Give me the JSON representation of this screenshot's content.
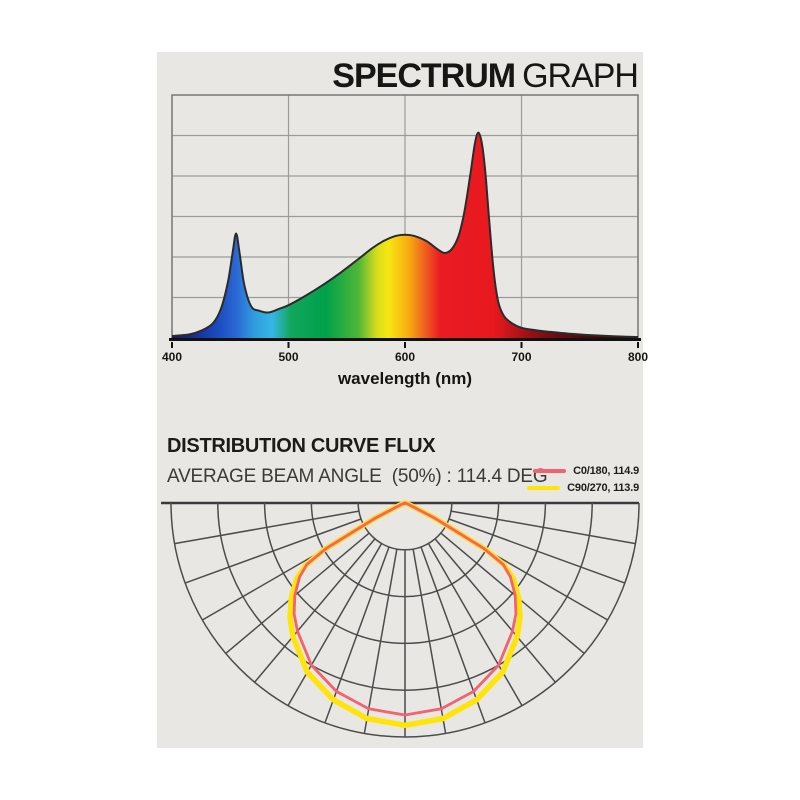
{
  "header": {
    "title_bold": "SPECTRUM",
    "title_light": "GRAPH"
  },
  "distribution": {
    "heading": "DISTRIBUTION CURVE FLUX",
    "subheading": "AVERAGE BEAM ANGLE  (50%) : 114.4 DEG",
    "legend": [
      {
        "label": "C0/180, 114.9",
        "color": "#f4616f"
      },
      {
        "label": "C90/270, 113.9",
        "color": "#ffe40a"
      }
    ]
  },
  "colors": {
    "panel_bg": "#e8e7e4",
    "spectrum_grid": "#9b9b9b",
    "spectrum_border": "#7d7d7d",
    "spectrum_outline": "#2b2b2b",
    "axis": "#111111",
    "polar_grid": "#4c4c4c",
    "polar_top_line": "#3a3a3a",
    "tick_text": "#151513"
  },
  "chart_data": [
    {
      "type": "area",
      "title": "SPECTRUM GRAPH",
      "xlabel": "wavelength (nm)",
      "xlim": [
        400,
        800
      ],
      "ylim": [
        0,
        1
      ],
      "x_ticks": [
        400,
        500,
        600,
        700,
        800
      ],
      "grid": {
        "rows": 6,
        "cols": 4
      },
      "legend_position": "none",
      "points": [
        [
          400,
          0.008
        ],
        [
          415,
          0.015
        ],
        [
          425,
          0.03
        ],
        [
          435,
          0.06
        ],
        [
          442,
          0.12
        ],
        [
          448,
          0.23
        ],
        [
          452,
          0.35
        ],
        [
          455,
          0.43
        ],
        [
          458,
          0.35
        ],
        [
          462,
          0.22
        ],
        [
          468,
          0.13
        ],
        [
          475,
          0.112
        ],
        [
          483,
          0.105
        ],
        [
          492,
          0.12
        ],
        [
          500,
          0.135
        ],
        [
          515,
          0.175
        ],
        [
          530,
          0.22
        ],
        [
          545,
          0.27
        ],
        [
          560,
          0.325
        ],
        [
          572,
          0.37
        ],
        [
          582,
          0.4
        ],
        [
          592,
          0.42
        ],
        [
          600,
          0.425
        ],
        [
          608,
          0.42
        ],
        [
          618,
          0.4
        ],
        [
          628,
          0.365
        ],
        [
          634,
          0.35
        ],
        [
          640,
          0.365
        ],
        [
          646,
          0.42
        ],
        [
          651,
          0.52
        ],
        [
          656,
          0.67
        ],
        [
          660,
          0.8
        ],
        [
          663,
          0.845
        ],
        [
          666,
          0.8
        ],
        [
          669,
          0.68
        ],
        [
          672,
          0.5
        ],
        [
          676,
          0.28
        ],
        [
          680,
          0.15
        ],
        [
          685,
          0.09
        ],
        [
          692,
          0.06
        ],
        [
          700,
          0.042
        ],
        [
          712,
          0.032
        ],
        [
          725,
          0.025
        ],
        [
          740,
          0.018
        ],
        [
          755,
          0.013
        ],
        [
          770,
          0.009
        ],
        [
          785,
          0.006
        ],
        [
          800,
          0.004
        ]
      ],
      "gradient_stops": [
        [
          0.0,
          "#12175e"
        ],
        [
          0.05,
          "#162f9a"
        ],
        [
          0.105,
          "#1c50c4"
        ],
        [
          0.135,
          "#2a65d2"
        ],
        [
          0.175,
          "#2f9ade"
        ],
        [
          0.215,
          "#35b7e5"
        ],
        [
          0.255,
          "#12a65c"
        ],
        [
          0.33,
          "#00a14a"
        ],
        [
          0.4,
          "#4fb637"
        ],
        [
          0.44,
          "#d8dd1d"
        ],
        [
          0.465,
          "#f7e711"
        ],
        [
          0.51,
          "#f7a713"
        ],
        [
          0.545,
          "#f05a22"
        ],
        [
          0.575,
          "#ea1c23"
        ],
        [
          0.69,
          "#e7191f"
        ],
        [
          0.74,
          "#b5141a"
        ],
        [
          0.8,
          "#7c0d12"
        ],
        [
          0.9,
          "#4a0709"
        ],
        [
          1.0,
          "#2e0405"
        ]
      ]
    },
    {
      "type": "polar",
      "title": "DISTRIBUTION CURVE FLUX",
      "beam_angle_text": "AVERAGE BEAM ANGLE  (50%) : 114.4 DEG",
      "outer_radius": 234,
      "rings": 5,
      "spoke_step_deg": 10,
      "gamma_range_deg": [
        -90,
        90
      ],
      "series": [
        {
          "name": "C90/270, 113.9",
          "color": "#ffe40a",
          "width": 5.5,
          "samples": [
            [
              0,
              0.95
            ],
            [
              10,
              0.935
            ],
            [
              20,
              0.895
            ],
            [
              30,
              0.835
            ],
            [
              40,
              0.745
            ],
            [
              45,
              0.695
            ],
            [
              50,
              0.635
            ],
            [
              55,
              0.565
            ],
            [
              58,
              0.5
            ],
            [
              60,
              0.4
            ],
            [
              63,
              0.15
            ],
            [
              65,
              0.05
            ],
            [
              70,
              0.01
            ],
            [
              90,
              0.0
            ]
          ]
        },
        {
          "name": "C0/180, 114.9",
          "color": "#f4616f",
          "width": 2.8,
          "samples": [
            [
              0,
              0.906
            ],
            [
              10,
              0.893
            ],
            [
              20,
              0.857
            ],
            [
              30,
              0.8
            ],
            [
              40,
              0.715
            ],
            [
              45,
              0.67
            ],
            [
              50,
              0.615
            ],
            [
              55,
              0.55
            ],
            [
              58,
              0.495
            ],
            [
              60,
              0.39
            ],
            [
              63,
              0.145
            ],
            [
              65,
              0.045
            ],
            [
              70,
              0.01
            ],
            [
              90,
              0.0
            ]
          ]
        }
      ]
    }
  ]
}
